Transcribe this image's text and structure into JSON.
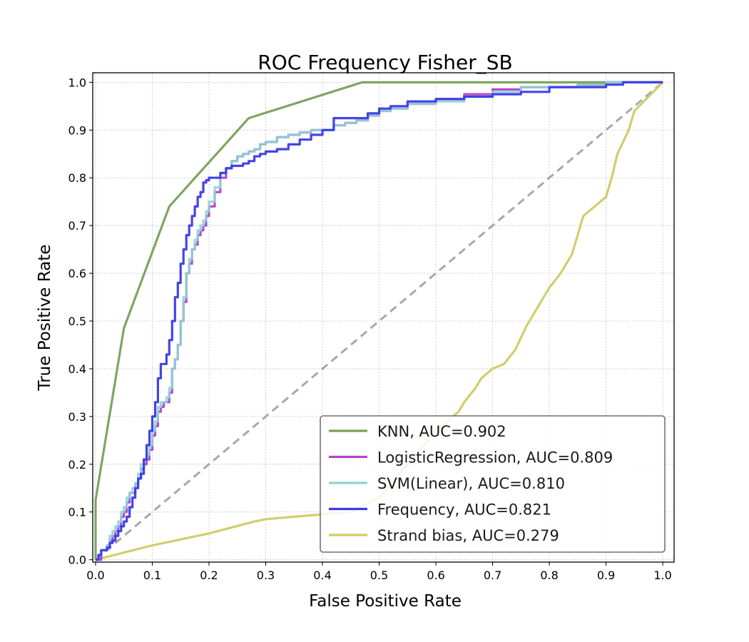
{
  "chart_data": {
    "type": "line",
    "title": "ROC Frequency Fisher_SB",
    "xlabel": "False Positive Rate",
    "ylabel": "True Positive Rate",
    "xlim": [
      -0.005,
      1.02
    ],
    "ylim": [
      -0.005,
      1.02
    ],
    "xticks": [
      "0.0",
      "0.1",
      "0.2",
      "0.3",
      "0.4",
      "0.5",
      "0.6",
      "0.7",
      "0.8",
      "0.9",
      "1.0"
    ],
    "yticks": [
      "0.0",
      "0.1",
      "0.2",
      "0.3",
      "0.4",
      "0.5",
      "0.6",
      "0.7",
      "0.8",
      "0.9",
      "1.0"
    ],
    "grid": true,
    "legend_position": "lower-right",
    "diagonal": {
      "x": [
        0,
        1
      ],
      "y": [
        0,
        1
      ],
      "color": "#a8a8a8",
      "style": "dashed"
    },
    "series": [
      {
        "name": "KNN, AUC=0.902",
        "color": "#77a05a",
        "x": [
          0,
          0,
          0.05,
          0.13,
          0.27,
          0.47,
          1.0
        ],
        "y": [
          0,
          0.125,
          0.485,
          0.74,
          0.925,
          1.0,
          1.0
        ]
      },
      {
        "name": "LogisticRegression, AUC=0.809",
        "color": "#b046c8",
        "x": [
          0,
          0.005,
          0.01,
          0.02,
          0.025,
          0.03,
          0.035,
          0.04,
          0.045,
          0.05,
          0.055,
          0.06,
          0.065,
          0.07,
          0.075,
          0.08,
          0.085,
          0.09,
          0.095,
          0.1,
          0.105,
          0.11,
          0.115,
          0.12,
          0.125,
          0.13,
          0.135,
          0.14,
          0.145,
          0.15,
          0.155,
          0.16,
          0.165,
          0.17,
          0.175,
          0.18,
          0.185,
          0.19,
          0.195,
          0.2,
          0.21,
          0.22,
          0.23,
          0.24,
          0.25,
          0.26,
          0.27,
          0.28,
          0.29,
          0.3,
          0.32,
          0.34,
          0.36,
          0.38,
          0.4,
          0.42,
          0.44,
          0.46,
          0.48,
          0.5,
          0.52,
          0.55,
          0.6,
          0.65,
          0.7,
          0.75,
          0.8,
          0.85,
          0.9,
          0.93,
          0.95,
          1.0
        ],
        "y": [
          0,
          0,
          0.02,
          0.03,
          0.04,
          0.05,
          0.06,
          0.07,
          0.09,
          0.1,
          0.12,
          0.14,
          0.14,
          0.16,
          0.17,
          0.19,
          0.2,
          0.21,
          0.23,
          0.26,
          0.28,
          0.31,
          0.32,
          0.33,
          0.33,
          0.35,
          0.4,
          0.42,
          0.45,
          0.5,
          0.54,
          0.6,
          0.62,
          0.65,
          0.66,
          0.68,
          0.69,
          0.7,
          0.72,
          0.74,
          0.77,
          0.8,
          0.82,
          0.835,
          0.845,
          0.85,
          0.855,
          0.86,
          0.87,
          0.875,
          0.885,
          0.89,
          0.895,
          0.9,
          0.9,
          0.91,
          0.915,
          0.92,
          0.93,
          0.94,
          0.945,
          0.955,
          0.965,
          0.975,
          0.985,
          0.99,
          0.99,
          0.995,
          1.0,
          1.0,
          1.0,
          1.0
        ]
      },
      {
        "name": "SVM(Linear), AUC=0.810",
        "color": "#8fd3d5",
        "x": [
          0,
          0.005,
          0.01,
          0.02,
          0.025,
          0.03,
          0.035,
          0.04,
          0.045,
          0.05,
          0.055,
          0.06,
          0.065,
          0.07,
          0.075,
          0.08,
          0.085,
          0.09,
          0.095,
          0.1,
          0.105,
          0.11,
          0.115,
          0.12,
          0.125,
          0.13,
          0.135,
          0.14,
          0.145,
          0.15,
          0.155,
          0.16,
          0.165,
          0.17,
          0.175,
          0.18,
          0.185,
          0.19,
          0.195,
          0.2,
          0.21,
          0.22,
          0.23,
          0.24,
          0.25,
          0.26,
          0.27,
          0.28,
          0.29,
          0.3,
          0.32,
          0.34,
          0.36,
          0.38,
          0.4,
          0.42,
          0.44,
          0.46,
          0.48,
          0.5,
          0.52,
          0.55,
          0.6,
          0.65,
          0.7,
          0.75,
          0.8,
          0.85,
          0.9,
          0.93,
          0.95,
          1.0
        ],
        "y": [
          0,
          0.01,
          0.02,
          0.03,
          0.05,
          0.06,
          0.07,
          0.08,
          0.1,
          0.11,
          0.13,
          0.14,
          0.15,
          0.16,
          0.18,
          0.2,
          0.21,
          0.22,
          0.24,
          0.27,
          0.29,
          0.32,
          0.33,
          0.33,
          0.34,
          0.36,
          0.4,
          0.42,
          0.45,
          0.5,
          0.55,
          0.6,
          0.63,
          0.65,
          0.67,
          0.69,
          0.7,
          0.71,
          0.73,
          0.75,
          0.78,
          0.81,
          0.82,
          0.835,
          0.845,
          0.85,
          0.855,
          0.86,
          0.87,
          0.875,
          0.885,
          0.89,
          0.895,
          0.9,
          0.9,
          0.91,
          0.915,
          0.92,
          0.93,
          0.94,
          0.945,
          0.955,
          0.96,
          0.97,
          0.98,
          0.99,
          0.99,
          0.995,
          1.0,
          1.0,
          1.0,
          1.0
        ]
      },
      {
        "name": "Frequency, AUC=0.821",
        "color": "#3a3ae6",
        "x": [
          0,
          0.005,
          0.01,
          0.02,
          0.025,
          0.03,
          0.035,
          0.04,
          0.045,
          0.05,
          0.055,
          0.06,
          0.065,
          0.07,
          0.075,
          0.08,
          0.085,
          0.09,
          0.095,
          0.1,
          0.105,
          0.11,
          0.115,
          0.12,
          0.125,
          0.13,
          0.135,
          0.14,
          0.145,
          0.15,
          0.155,
          0.16,
          0.165,
          0.17,
          0.175,
          0.18,
          0.185,
          0.19,
          0.195,
          0.2,
          0.21,
          0.22,
          0.23,
          0.24,
          0.25,
          0.26,
          0.27,
          0.28,
          0.29,
          0.3,
          0.32,
          0.34,
          0.36,
          0.38,
          0.4,
          0.42,
          0.44,
          0.46,
          0.48,
          0.5,
          0.52,
          0.55,
          0.6,
          0.65,
          0.7,
          0.75,
          0.8,
          0.85,
          0.9,
          0.93,
          0.95,
          1.0
        ],
        "y": [
          0,
          0.01,
          0.02,
          0.025,
          0.035,
          0.04,
          0.05,
          0.06,
          0.07,
          0.08,
          0.09,
          0.11,
          0.13,
          0.15,
          0.17,
          0.18,
          0.21,
          0.24,
          0.27,
          0.3,
          0.33,
          0.38,
          0.41,
          0.41,
          0.43,
          0.46,
          0.5,
          0.55,
          0.58,
          0.62,
          0.65,
          0.68,
          0.7,
          0.72,
          0.74,
          0.76,
          0.77,
          0.79,
          0.795,
          0.8,
          0.8,
          0.81,
          0.82,
          0.825,
          0.825,
          0.83,
          0.835,
          0.845,
          0.85,
          0.855,
          0.86,
          0.87,
          0.88,
          0.89,
          0.9,
          0.925,
          0.925,
          0.925,
          0.935,
          0.945,
          0.95,
          0.96,
          0.965,
          0.97,
          0.975,
          0.98,
          0.99,
          0.99,
          0.995,
          1.0,
          1.0,
          1.0
        ]
      },
      {
        "name": "Strand bias, AUC=0.279",
        "color": "#cdcb64",
        "x": [
          0,
          0.1,
          0.2,
          0.28,
          0.3,
          0.35,
          0.4,
          0.45,
          0.5,
          0.55,
          0.6,
          0.62,
          0.64,
          0.65,
          0.67,
          0.68,
          0.7,
          0.72,
          0.74,
          0.76,
          0.78,
          0.8,
          0.82,
          0.84,
          0.85,
          0.86,
          0.88,
          0.9,
          0.91,
          0.92,
          0.94,
          0.95,
          1.0
        ],
        "y": [
          0,
          0.03,
          0.055,
          0.08,
          0.085,
          0.09,
          0.095,
          0.1,
          0.13,
          0.2,
          0.27,
          0.29,
          0.31,
          0.33,
          0.36,
          0.38,
          0.4,
          0.41,
          0.44,
          0.49,
          0.53,
          0.57,
          0.6,
          0.64,
          0.68,
          0.72,
          0.74,
          0.76,
          0.8,
          0.85,
          0.9,
          0.94,
          1.0
        ]
      }
    ]
  }
}
